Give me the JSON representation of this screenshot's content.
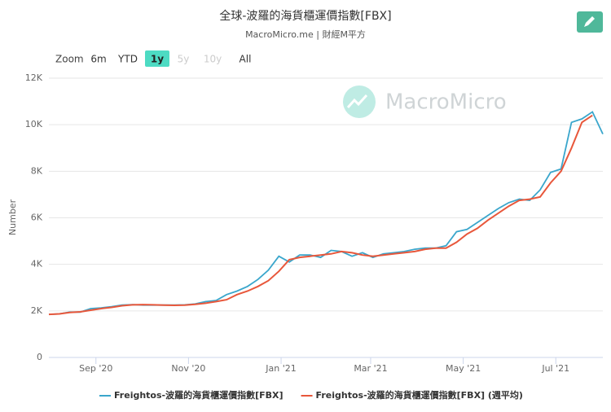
{
  "chart_data": {
    "type": "line",
    "title": "全球-波羅的海貨櫃運價指數[FBX]",
    "subtitle": "MacroMicro.me | 財經M平方",
    "watermark": "MacroMicro",
    "ylabel": "Number",
    "range_selector": {
      "label": "Zoom",
      "buttons": [
        "6m",
        "YTD",
        "1y",
        "5y",
        "10y",
        "All"
      ],
      "active_index": 2,
      "disabled_indices": [
        3,
        4
      ]
    },
    "xlim": [
      "2020-08",
      "2021-08"
    ],
    "xticks": [
      {
        "value": "2020-09",
        "label": "Sep '20"
      },
      {
        "value": "2020-11",
        "label": "Nov '20"
      },
      {
        "value": "2021-01",
        "label": "Jan '21"
      },
      {
        "value": "2021-03",
        "label": "Mar '21"
      },
      {
        "value": "2021-05",
        "label": "May '21"
      },
      {
        "value": "2021-07",
        "label": "Jul '21"
      }
    ],
    "ylim": [
      0,
      12000
    ],
    "yticks": [
      0,
      {
        "value": 2000,
        "label": "2K"
      },
      {
        "value": 4000,
        "label": "4K"
      },
      {
        "value": 6000,
        "label": "6K"
      },
      {
        "value": 8000,
        "label": "8K"
      },
      {
        "value": 10000,
        "label": "10K"
      },
      {
        "value": 12000,
        "label": "12K"
      }
    ],
    "grid": true,
    "series": [
      {
        "name": "Freightos-波羅的海貨櫃運價指數[FBX]",
        "color": "#3aa6cc",
        "values": [
          1850,
          1870,
          1950,
          1950,
          2100,
          2130,
          2180,
          2250,
          2270,
          2250,
          2250,
          2250,
          2250,
          2260,
          2300,
          2400,
          2450,
          2700,
          2850,
          3050,
          3350,
          3750,
          4350,
          4100,
          4400,
          4400,
          4300,
          4600,
          4550,
          4350,
          4500,
          4300,
          4450,
          4500,
          4550,
          4650,
          4700,
          4700,
          4800,
          5400,
          5500,
          5800,
          6100,
          6400,
          6650,
          6800,
          6750,
          7200,
          7950,
          8100,
          10100,
          10250,
          10550,
          9600
        ]
      },
      {
        "name": "Freightos-波羅的海貨櫃運價指數[FBX] (週平均)",
        "color": "#e8573b",
        "values": [
          1850,
          1870,
          1930,
          1960,
          2030,
          2100,
          2150,
          2220,
          2260,
          2270,
          2260,
          2250,
          2240,
          2250,
          2280,
          2330,
          2400,
          2480,
          2700,
          2850,
          3050,
          3300,
          3700,
          4200,
          4300,
          4350,
          4400,
          4450,
          4550,
          4500,
          4400,
          4350,
          4400,
          4450,
          4500,
          4550,
          4650,
          4700,
          4700,
          4950,
          5300,
          5550,
          5900,
          6200,
          6500,
          6750,
          6800,
          6900,
          7500,
          8000,
          9000,
          10100,
          10400,
          null
        ]
      }
    ]
  }
}
